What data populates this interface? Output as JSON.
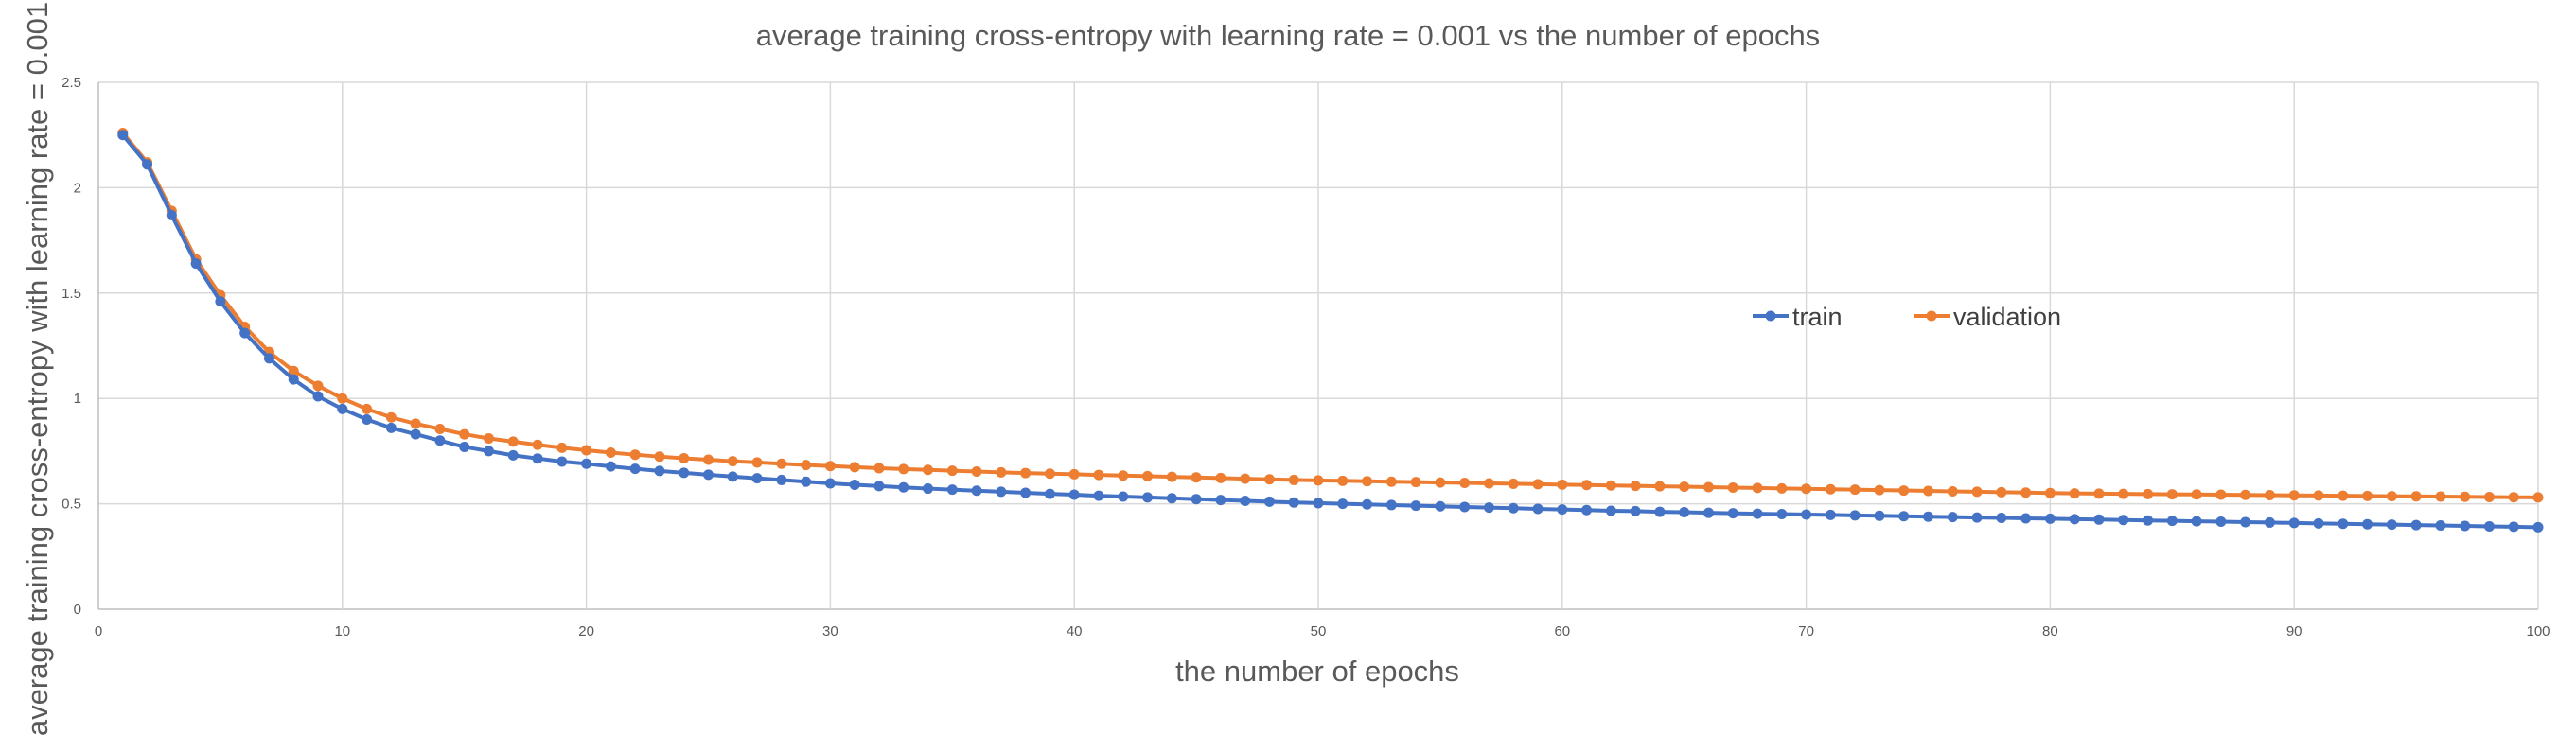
{
  "chart_data": {
    "type": "line",
    "title": "average training cross-entropy with learning rate = 0.001  vs the number of epochs",
    "xlabel": "the number of epochs",
    "ylabel": "average training cross-entropy with learning rate = 0.001",
    "xlim": [
      0,
      100
    ],
    "ylim": [
      0,
      2.5
    ],
    "xticks": [
      0,
      10,
      20,
      30,
      40,
      50,
      60,
      70,
      80,
      90,
      100
    ],
    "yticks": [
      0,
      0.5,
      1,
      1.5,
      2,
      2.5
    ],
    "ytick_labels": [
      "0",
      "0.5",
      "1",
      "1.5",
      "2",
      "2.5"
    ],
    "grid": true,
    "legend_position": "center-right",
    "x": [
      1,
      2,
      3,
      4,
      5,
      6,
      7,
      8,
      9,
      10,
      11,
      12,
      13,
      14,
      15,
      16,
      17,
      18,
      19,
      20,
      21,
      22,
      23,
      24,
      25,
      26,
      27,
      28,
      29,
      30,
      31,
      32,
      33,
      34,
      35,
      36,
      37,
      38,
      39,
      40,
      41,
      42,
      43,
      44,
      45,
      46,
      47,
      48,
      49,
      50,
      51,
      52,
      53,
      54,
      55,
      56,
      57,
      58,
      59,
      60,
      61,
      62,
      63,
      64,
      65,
      66,
      67,
      68,
      69,
      70,
      71,
      72,
      73,
      74,
      75,
      76,
      77,
      78,
      79,
      80,
      81,
      82,
      83,
      84,
      85,
      86,
      87,
      88,
      89,
      90,
      91,
      92,
      93,
      94,
      95,
      96,
      97,
      98,
      99,
      100
    ],
    "series": [
      {
        "name": "train",
        "color": "#4472C4",
        "values": [
          2.25,
          2.11,
          1.87,
          1.64,
          1.46,
          1.31,
          1.19,
          1.09,
          1.01,
          0.95,
          0.9,
          0.86,
          0.83,
          0.8,
          0.77,
          0.75,
          0.73,
          0.715,
          0.7,
          0.69,
          0.677,
          0.666,
          0.656,
          0.647,
          0.638,
          0.629,
          0.621,
          0.613,
          0.605,
          0.597,
          0.59,
          0.584,
          0.578,
          0.572,
          0.567,
          0.562,
          0.557,
          0.552,
          0.547,
          0.543,
          0.538,
          0.534,
          0.53,
          0.526,
          0.522,
          0.518,
          0.514,
          0.51,
          0.506,
          0.503,
          0.5,
          0.497,
          0.494,
          0.491,
          0.488,
          0.485,
          0.482,
          0.479,
          0.476,
          0.473,
          0.47,
          0.467,
          0.465,
          0.462,
          0.46,
          0.457,
          0.455,
          0.453,
          0.451,
          0.449,
          0.447,
          0.445,
          0.443,
          0.441,
          0.439,
          0.437,
          0.435,
          0.433,
          0.431,
          0.429,
          0.427,
          0.425,
          0.423,
          0.421,
          0.419,
          0.417,
          0.415,
          0.413,
          0.411,
          0.409,
          0.407,
          0.405,
          0.403,
          0.401,
          0.399,
          0.397,
          0.395,
          0.393,
          0.391,
          0.389
        ]
      },
      {
        "name": "validation",
        "color": "#ED7D31",
        "values": [
          2.26,
          2.12,
          1.89,
          1.66,
          1.49,
          1.34,
          1.22,
          1.13,
          1.06,
          1.0,
          0.95,
          0.91,
          0.88,
          0.855,
          0.83,
          0.81,
          0.795,
          0.78,
          0.766,
          0.754,
          0.743,
          0.733,
          0.724,
          0.716,
          0.709,
          0.702,
          0.696,
          0.69,
          0.684,
          0.679,
          0.674,
          0.669,
          0.665,
          0.661,
          0.657,
          0.653,
          0.649,
          0.646,
          0.643,
          0.64,
          0.637,
          0.634,
          0.631,
          0.628,
          0.625,
          0.622,
          0.619,
          0.616,
          0.613,
          0.611,
          0.609,
          0.607,
          0.605,
          0.603,
          0.601,
          0.599,
          0.597,
          0.595,
          0.593,
          0.591,
          0.589,
          0.587,
          0.585,
          0.583,
          0.581,
          0.579,
          0.577,
          0.575,
          0.573,
          0.571,
          0.569,
          0.567,
          0.565,
          0.563,
          0.561,
          0.559,
          0.557,
          0.555,
          0.553,
          0.551,
          0.549,
          0.548,
          0.547,
          0.546,
          0.545,
          0.544,
          0.543,
          0.542,
          0.541,
          0.54,
          0.539,
          0.538,
          0.537,
          0.536,
          0.535,
          0.534,
          0.533,
          0.532,
          0.531,
          0.53
        ]
      }
    ]
  }
}
